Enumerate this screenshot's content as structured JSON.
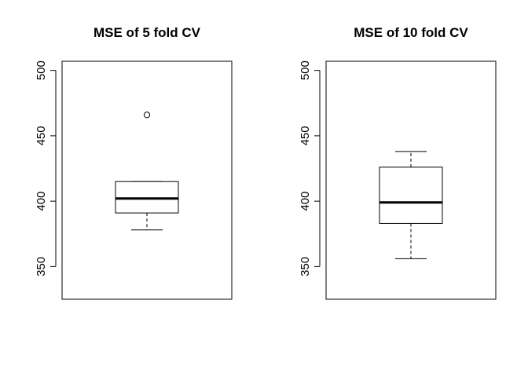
{
  "chart_data": [
    {
      "type": "boxplot",
      "title": "MSE of 5 fold CV",
      "xlabel": "",
      "ylabel": "",
      "ylim": [
        325,
        507
      ],
      "yticks": [
        350,
        400,
        450,
        500
      ],
      "box": {
        "min": 378,
        "q1": 391,
        "median": 402,
        "q3": 415,
        "max": 415
      },
      "outliers": [
        466
      ]
    },
    {
      "type": "boxplot",
      "title": "MSE of 10 fold CV",
      "xlabel": "",
      "ylabel": "",
      "ylim": [
        325,
        507
      ],
      "yticks": [
        350,
        400,
        450,
        500
      ],
      "box": {
        "min": 356,
        "q1": 383,
        "median": 399,
        "q3": 426,
        "max": 438
      },
      "outliers": []
    }
  ]
}
